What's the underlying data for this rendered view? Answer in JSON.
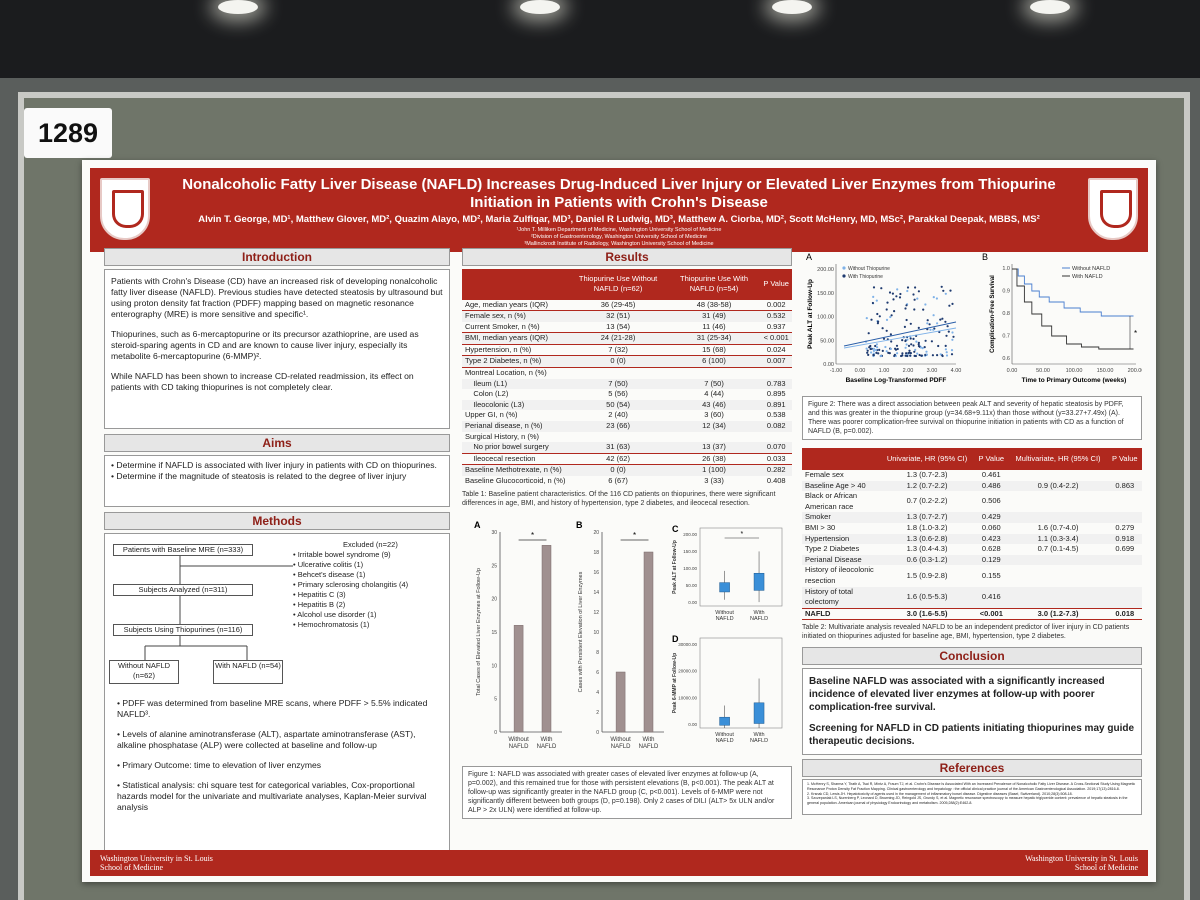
{
  "board_number": "1289",
  "title": "Nonalcoholic Fatty Liver Disease (NAFLD) Increases Drug-Induced Liver Injury or Elevated Liver Enzymes from Thiopurine Initiation in Patients with Crohn's Disease",
  "authors": "Alvin T. George, MD¹, Matthew Glover, MD², Quazim Alayo, MD², Maria Zulfiqar, MD³, Daniel R Ludwig, MD³, Matthew A. Ciorba, MD², Scott McHenry, MD, MSc², Parakkal Deepak, MBBS, MS²",
  "affiliations": [
    "¹John T. Milliken Department of Medicine, Washington University School of Medicine",
    "²Division of Gastroenterology, Washington University School of Medicine",
    "³Mallinckrodt Institute of Radiology, Washington University School of Medicine"
  ],
  "introduction": {
    "heading": "Introduction",
    "p1": "Patients with Crohn's Disease (CD) have an increased risk of developing nonalcoholic fatty liver disease (NAFLD). Previous studies have detected steatosis by ultrasound but using proton density fat fraction (PDFF) mapping based on magnetic resonance enterography (MRE) is more sensitive and specific¹.",
    "p2": "Thiopurines, such as 6-mercaptopurine or its precursor azathioprine, are used as steroid-sparing agents in CD and are known to cause liver injury, especially its metabolite 6-mercaptopurine (6-MMP)².",
    "p3": "While NAFLD has been shown to increase CD-related readmission, its effect on patients with CD taking thiopurines is not completely clear."
  },
  "aims": {
    "heading": "Aims",
    "items": [
      "Determine if NAFLD is associated with liver injury in patients with CD on thiopurines.",
      "Determine if the magnitude of steatosis is related to the degree of liver injury"
    ]
  },
  "methods": {
    "heading": "Methods",
    "flow": {
      "baseline": "Patients with Baseline MRE (n=333)",
      "analyzed": "Subjects Analyzed (n=311)",
      "thiopurines": "Subjects Using Thiopurines (n=116)",
      "without": "Without NAFLD (n=62)",
      "with": "With NAFLD (n=54)",
      "excluded_title": "Excluded (n=22)",
      "excluded": [
        "Irritable bowel syndrome (9)",
        "Ulcerative colitis (1)",
        "Behcet's disease (1)",
        "Primary sclerosing cholangitis (4)",
        "Hepatitis C (3)",
        "Hepatitis B (2)",
        "Alcohol use disorder (1)",
        "Hemochromatosis (1)"
      ]
    },
    "bullets": [
      "PDFF was determined from baseline MRE scans, where PDFF > 5.5% indicated NAFLD³.",
      "Levels of alanine aminotransferase (ALT), aspartate aminotransferase (AST), alkaline phosphatase (ALP) were collected at baseline and follow-up",
      "Primary Outcome: time to elevation of liver enzymes",
      "Statistical analysis: chi square test for categorical variables, Cox-proportional hazards model for the univariate and multivariate analyses, Kaplan-Meier survival analysis"
    ]
  },
  "results": {
    "heading": "Results",
    "headers": [
      "",
      "Thiopurine Use Without NAFLD (n=62)",
      "Thiopurine Use With NAFLD (n=54)",
      "P Value"
    ],
    "rows": [
      {
        "label": "Age, median years (IQR)",
        "a": "36 (29-45)",
        "b": "48 (38-58)",
        "p": "0.002",
        "hl": true
      },
      {
        "label": "Female sex, n (%)",
        "a": "32 (51)",
        "b": "31 (49)",
        "p": "0.532"
      },
      {
        "label": "Current Smoker, n (%)",
        "a": "13 (54)",
        "b": "11 (46)",
        "p": "0.937"
      },
      {
        "label": "BMI, median years (IQR)",
        "a": "24 (21-28)",
        "b": "31 (25-34)",
        "p": "< 0.001",
        "hl": true
      },
      {
        "label": "Hypertension, n (%)",
        "a": "7 (32)",
        "b": "15 (68)",
        "p": "0.024",
        "hl": true
      },
      {
        "label": "Type 2 Diabetes, n (%)",
        "a": "0 (0)",
        "b": "6 (100)",
        "p": "0.007",
        "hl": true
      },
      {
        "label": "Montreal Location, n (%)",
        "a": "",
        "b": "",
        "p": ""
      },
      {
        "label": "    Ileum (L1)",
        "a": "7 (50)",
        "b": "7 (50)",
        "p": "0.783"
      },
      {
        "label": "    Colon (L2)",
        "a": "5 (56)",
        "b": "4 (44)",
        "p": "0.895"
      },
      {
        "label": "    Ileocolonic (L3)",
        "a": "50 (54)",
        "b": "43 (46)",
        "p": "0.891"
      },
      {
        "label": "Upper GI, n (%)",
        "a": "2 (40)",
        "b": "3 (60)",
        "p": "0.538"
      },
      {
        "label": "Perianal disease, n (%)",
        "a": "23 (66)",
        "b": "12 (34)",
        "p": "0.082"
      },
      {
        "label": "Surgical History, n (%)",
        "a": "",
        "b": "",
        "p": ""
      },
      {
        "label": "    No prior bowel surgery",
        "a": "31 (63)",
        "b": "13 (37)",
        "p": "0.070"
      },
      {
        "label": "    Ileocecal resection",
        "a": "42 (62)",
        "b": "26 (38)",
        "p": "0.033",
        "hl": true
      },
      {
        "label": "Baseline Methotrexate, n (%)",
        "a": "0 (0)",
        "b": "1 (100)",
        "p": "0.282"
      },
      {
        "label": "Baseline Glucocorticoid, n (%)",
        "a": "6 (67)",
        "b": "3 (33)",
        "p": "0.408"
      }
    ],
    "table_caption": "Table 1: Baseline patient characteristics. Of the 116 CD patients on thiopurines, there were significant differences in age, BMI, and history of hypertension, type 2 diabetes, and ileocecal resection.",
    "figure1_caption": "Figure 1: NAFLD was associated with greater cases of elevated liver enzymes at follow-up (A, p=0.002), and this remained true for those with persistent elevations (B, p<0.001). The peak ALT at follow-up was significantly greater in the NAFLD group (C, p<0.001). Levels of 6-MMP were not significantly different between both groups (D, p=0.198). Only 2 cases of DILI (ALT> 5x ULN and/or ALP > 2x ULN) were identified at follow-up."
  },
  "chart_data": [
    {
      "type": "bar",
      "panel": "A",
      "categories": [
        "Without NAFLD",
        "With NAFLD"
      ],
      "values": [
        16,
        28
      ],
      "ylabel": "Total Cases of Elevated Liver Enzymes at Follow-Up",
      "ylim": [
        0,
        30
      ],
      "yticks": [
        "0",
        "5",
        "10",
        "15",
        "20",
        "25",
        "30"
      ],
      "sig": "*"
    },
    {
      "type": "bar",
      "panel": "B",
      "categories": [
        "Without NAFLD",
        "With NAFLD"
      ],
      "values": [
        6,
        18
      ],
      "ylabel": "Cases with Persistent Elevation of Liver Enzymes",
      "ylim": [
        0,
        20
      ],
      "yticks": [
        "0",
        "2",
        "4",
        "6",
        "8",
        "10",
        "12",
        "14",
        "16",
        "18",
        "20"
      ],
      "sig": "*"
    },
    {
      "type": "box",
      "panel": "C",
      "categories": [
        "Without NAFLD",
        "With NAFLD"
      ],
      "ylabel": "Peak ALT at Follow-Up",
      "yticks": [
        "0.00",
        "50.00",
        "100.00",
        "150.00",
        "200.00"
      ],
      "sig": "*"
    },
    {
      "type": "box",
      "panel": "D",
      "categories": [
        "Without NAFLD",
        "With NAFLD"
      ],
      "ylabel": "Peak 6-MMP at Follow-Up",
      "yticks": [
        "0.00",
        "10000.00",
        "20000.00",
        "30000.00"
      ]
    },
    {
      "type": "scatter",
      "panel": "A",
      "xlabel": "Baseline Log-Transformed PDFF",
      "ylabel": "Peak ALT at Follow-Up",
      "xticks": [
        "-1.00",
        "0.00",
        "1.00",
        "2.00",
        "3.00",
        "4.00"
      ],
      "yticks": [
        "0.00",
        "50.00",
        "100.00",
        "150.00",
        "200.00"
      ],
      "legend": [
        "Without Thiopurine",
        "With Thiopurine"
      ]
    },
    {
      "type": "line",
      "panel": "B",
      "xlabel": "Time to Primary Outcome (weeks)",
      "ylabel": "Complication-Free Survival",
      "xticks": [
        "0.00",
        "50.00",
        "100.00",
        "150.00",
        "200.00"
      ],
      "yticks": [
        "0.6",
        "0.7",
        "0.8",
        "0.9",
        "1.0"
      ],
      "legend": [
        "Without NAFLD",
        "With NAFLD"
      ],
      "sig": "*"
    }
  ],
  "figure2_caption": "Figure 2: There was a direct association between peak ALT and severity of hepatic steatosis by PDFF, and this was greater in the thiopurine group (y=34.68+9.11x) than those without (y=33.27+7.49x) (A). There was poorer complication-free survival on thiopurine initiation in patients with CD as a function of NAFLD (B, p=0.002).",
  "hazard_table": {
    "headers": [
      "",
      "Univariate, HR (95% CI)",
      "P Value",
      "Multivariate, HR (95% CI)",
      "P Value"
    ],
    "rows": [
      {
        "label": "Female sex",
        "u": "1.3 (0.7-2.3)",
        "up": "0.461",
        "m": "",
        "mp": ""
      },
      {
        "label": "Baseline Age > 40",
        "u": "1.2 (0.7-2.2)",
        "up": "0.486",
        "m": "0.9 (0.4-2.2)",
        "mp": "0.863"
      },
      {
        "label": "Black or African American race",
        "u": "0.7 (0.2-2.2)",
        "up": "0.506",
        "m": "",
        "mp": ""
      },
      {
        "label": "Smoker",
        "u": "1.3 (0.7-2.7)",
        "up": "0.429",
        "m": "",
        "mp": ""
      },
      {
        "label": "BMI > 30",
        "u": "1.8 (1.0-3.2)",
        "up": "0.060",
        "m": "1.6 (0.7-4.0)",
        "mp": "0.279"
      },
      {
        "label": "Hypertension",
        "u": "1.3 (0.6-2.8)",
        "up": "0.423",
        "m": "1.1 (0.3-3.4)",
        "mp": "0.918"
      },
      {
        "label": "Type 2 Diabetes",
        "u": "1.3 (0.4-4.3)",
        "up": "0.628",
        "m": "0.7 (0.1-4.5)",
        "mp": "0.699"
      },
      {
        "label": "Perianal Disease",
        "u": "0.6 (0.3-1.2)",
        "up": "0.129",
        "m": "",
        "mp": ""
      },
      {
        "label": "History of ileocolonic resection",
        "u": "1.5 (0.9-2.8)",
        "up": "0.155",
        "m": "",
        "mp": ""
      },
      {
        "label": "History of total colectomy",
        "u": "1.6 (0.5-5.3)",
        "up": "0.416",
        "m": "",
        "mp": ""
      },
      {
        "label": "NAFLD",
        "u": "3.0 (1.6-5.5)",
        "up": "<0.001",
        "m": "3.0 (1.2-7.3)",
        "mp": "0.018",
        "hl": true
      }
    ],
    "caption": "Table 2: Multivariate analysis revealed NAFLD to be an independent predictor of liver injury in CD patients initiated on thiopurines adjusted for baseline age, BMI, hypertension, type 2 diabetes."
  },
  "conclusion": {
    "heading": "Conclusion",
    "p1": "Baseline NAFLD was associated with a significantly increased incidence of elevated liver enzymes at follow-up with poorer complication-free survival.",
    "p2": "Screening for NAFLD in CD patients initiating thiopurines may guide therapeutic decisions."
  },
  "references": {
    "heading": "References",
    "items": [
      "1. McHenry S, Sharma Y, Tirath A, Tsai R, Mintz A, Fraum TJ, et al. Crohn's Disease Is Associated With an Increased Prevalence of Nonalcoholic Fatty Liver Disease. A Cross-Sectional Study Using Magnetic Resonance Proton Density Fat Fraction Mapping. Clinical gastroenterology and hepatology : the official clinical practice journal of the American Gastroenterological Association. 2019;17(13):2816-8.",
      "2. Krsnak CD, Lewis JH. Hepatotoxicity of agents used in the management of inflammatory bowel disease. Digestive diseases (Basel, Switzerland). 2010;28(3):508-18.",
      "3. Szczepaniak LS, Nurenberg P, Leonard D, Browning JD, Reingold JS, Grundy S, et al. Magnetic resonance spectroscopy to measure hepatic triglyceride content: prevalence of hepatic steatosis in the general population. American journal of physiology Endocrinology and metabolism. 2005;288(2):E462-8."
    ]
  },
  "footer": {
    "logo_top": "Washington University in St. Louis",
    "logo_bottom": "School of Medicine"
  },
  "colors": {
    "brand": "#b0281e",
    "bars": "#a09090",
    "box": "#3a8fd8"
  }
}
